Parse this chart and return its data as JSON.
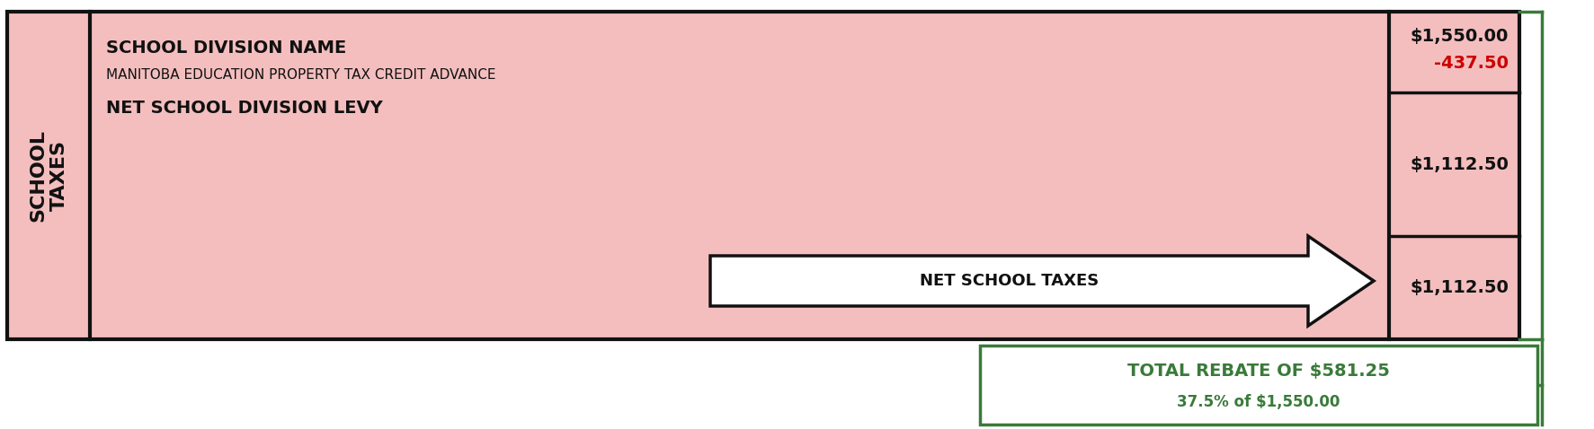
{
  "bg_color": "#FFFFFF",
  "main_bg": "#F4BEBE",
  "border_color": "#111111",
  "green_color": "#3A7A3A",
  "red_color": "#CC0000",
  "dark_color": "#111111",
  "row1_label": "SCHOOL DIVISION NAME",
  "row2_label": "MANITOBA EDUCATION PROPERTY TAX CREDIT ADVANCE",
  "row3_label": "NET SCHOOL DIVISION LEVY",
  "val1": "$1,550.00",
  "val2": "-437.50",
  "val3": "$1,112.50",
  "val4": "$1,112.50",
  "arrow_label": "NET SCHOOL TAXES",
  "arrow_fill": "#FFFFFF",
  "arrow_border": "#111111",
  "rebate_line1": "TOTAL REBATE OF $581.25",
  "rebate_line2": "37.5% of $1,550.00",
  "rebate_box_color": "#3A7A3A",
  "fig_width": 17.74,
  "fig_height": 4.78
}
